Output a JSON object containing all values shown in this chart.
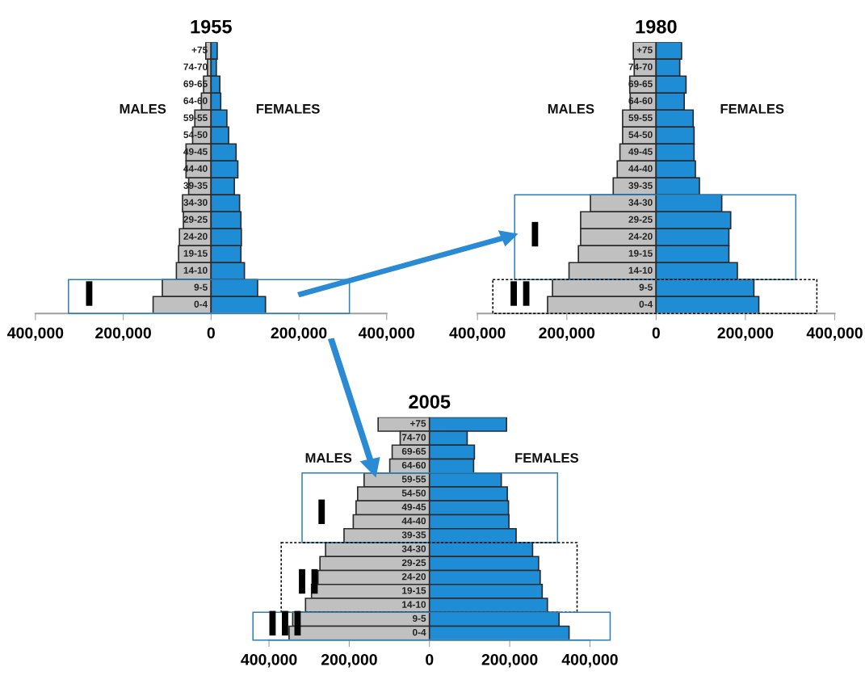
{
  "chart_data": [
    {
      "type": "bar",
      "orientation": "horizontal",
      "stacked": true,
      "title": "1955",
      "categories": [
        "+75",
        "74-70",
        "69-65",
        "64-60",
        "59-55",
        "54-50",
        "49-45",
        "44-40",
        "39-35",
        "34-30",
        "29-25",
        "24-20",
        "19-15",
        "14-10",
        "9-5",
        "0-4"
      ],
      "series": [
        {
          "name": "MALES",
          "color": "#c0c0c0",
          "values": [
            -12000,
            -8000,
            -17000,
            -22000,
            -37000,
            -42000,
            -57000,
            -57000,
            -51000,
            -65000,
            -63000,
            -72000,
            -74000,
            -79000,
            -111000,
            -132000
          ]
        },
        {
          "name": "FEMALES",
          "color": "#1f8dd6",
          "values": [
            14000,
            12000,
            20000,
            22000,
            36000,
            40000,
            57000,
            61000,
            53000,
            65000,
            68000,
            69000,
            68000,
            76000,
            106000,
            124000
          ]
        }
      ],
      "xlim": [
        -400000,
        400000
      ],
      "xticks": [
        {
          "value": -400000,
          "label": "400,000"
        },
        {
          "value": -200000,
          "label": "200,000"
        },
        0,
        {
          "value": 200000,
          "label": "200,000"
        },
        {
          "value": 400000,
          "label": "400,000"
        }
      ],
      "annotations": [
        "I"
      ]
    },
    {
      "type": "bar",
      "orientation": "horizontal",
      "stacked": true,
      "title": "1980",
      "categories": [
        "+75",
        "74-70",
        "69-65",
        "64-60",
        "59-55",
        "54-50",
        "49-45",
        "44-40",
        "39-35",
        "34-30",
        "29-25",
        "24-20",
        "19-15",
        "14-10",
        "9-5",
        "0-4"
      ],
      "series": [
        {
          "name": "MALES",
          "color": "#c0c0c0",
          "values": [
            -51000,
            -49000,
            -59000,
            -58000,
            -75000,
            -75000,
            -81000,
            -87000,
            -96000,
            -147000,
            -169000,
            -169000,
            -174000,
            -195000,
            -232000,
            -243000
          ]
        },
        {
          "name": "FEMALES",
          "color": "#1f8dd6",
          "values": [
            57000,
            53000,
            67000,
            63000,
            83000,
            85000,
            85000,
            88000,
            97000,
            147000,
            167000,
            163000,
            163000,
            182000,
            219000,
            230000
          ]
        }
      ],
      "xlim": [
        -400000,
        400000
      ],
      "xticks": [
        {
          "value": -400000,
          "label": "400,000"
        },
        {
          "value": -200000,
          "label": "200,000"
        },
        0,
        {
          "value": 200000,
          "label": "200,000"
        },
        {
          "value": 400000,
          "label": "400,000"
        }
      ],
      "annotations": [
        "I",
        "II"
      ]
    },
    {
      "type": "bar",
      "orientation": "horizontal",
      "stacked": true,
      "title": "2005",
      "categories": [
        "+75",
        "74-70",
        "69-65",
        "64-60",
        "59-55",
        "54-50",
        "49-45",
        "44-40",
        "39-35",
        "34-30",
        "29-25",
        "24-20",
        "19-15",
        "14-10",
        "9-5",
        "0-4"
      ],
      "series": [
        {
          "name": "MALES",
          "color": "#c0c0c0",
          "values": [
            -128000,
            -73000,
            -93000,
            -99000,
            -163000,
            -179000,
            -183000,
            -190000,
            -213000,
            -259000,
            -273000,
            -278000,
            -294000,
            -309000,
            -341000,
            -350000
          ]
        },
        {
          "name": "FEMALES",
          "color": "#1f8dd6",
          "values": [
            192000,
            94000,
            112000,
            110000,
            179000,
            194000,
            197000,
            198000,
            216000,
            257000,
            272000,
            276000,
            281000,
            294000,
            323000,
            348000
          ]
        }
      ],
      "xlim": [
        -400000,
        400000
      ],
      "xticks": [
        {
          "value": -400000,
          "label": "400,000"
        },
        {
          "value": -200000,
          "label": "200,000"
        },
        0,
        {
          "value": 200000,
          "label": "200,000"
        },
        {
          "value": 400000,
          "label": "400,000"
        }
      ],
      "annotations": [
        "I",
        "II",
        "III"
      ]
    }
  ]
}
